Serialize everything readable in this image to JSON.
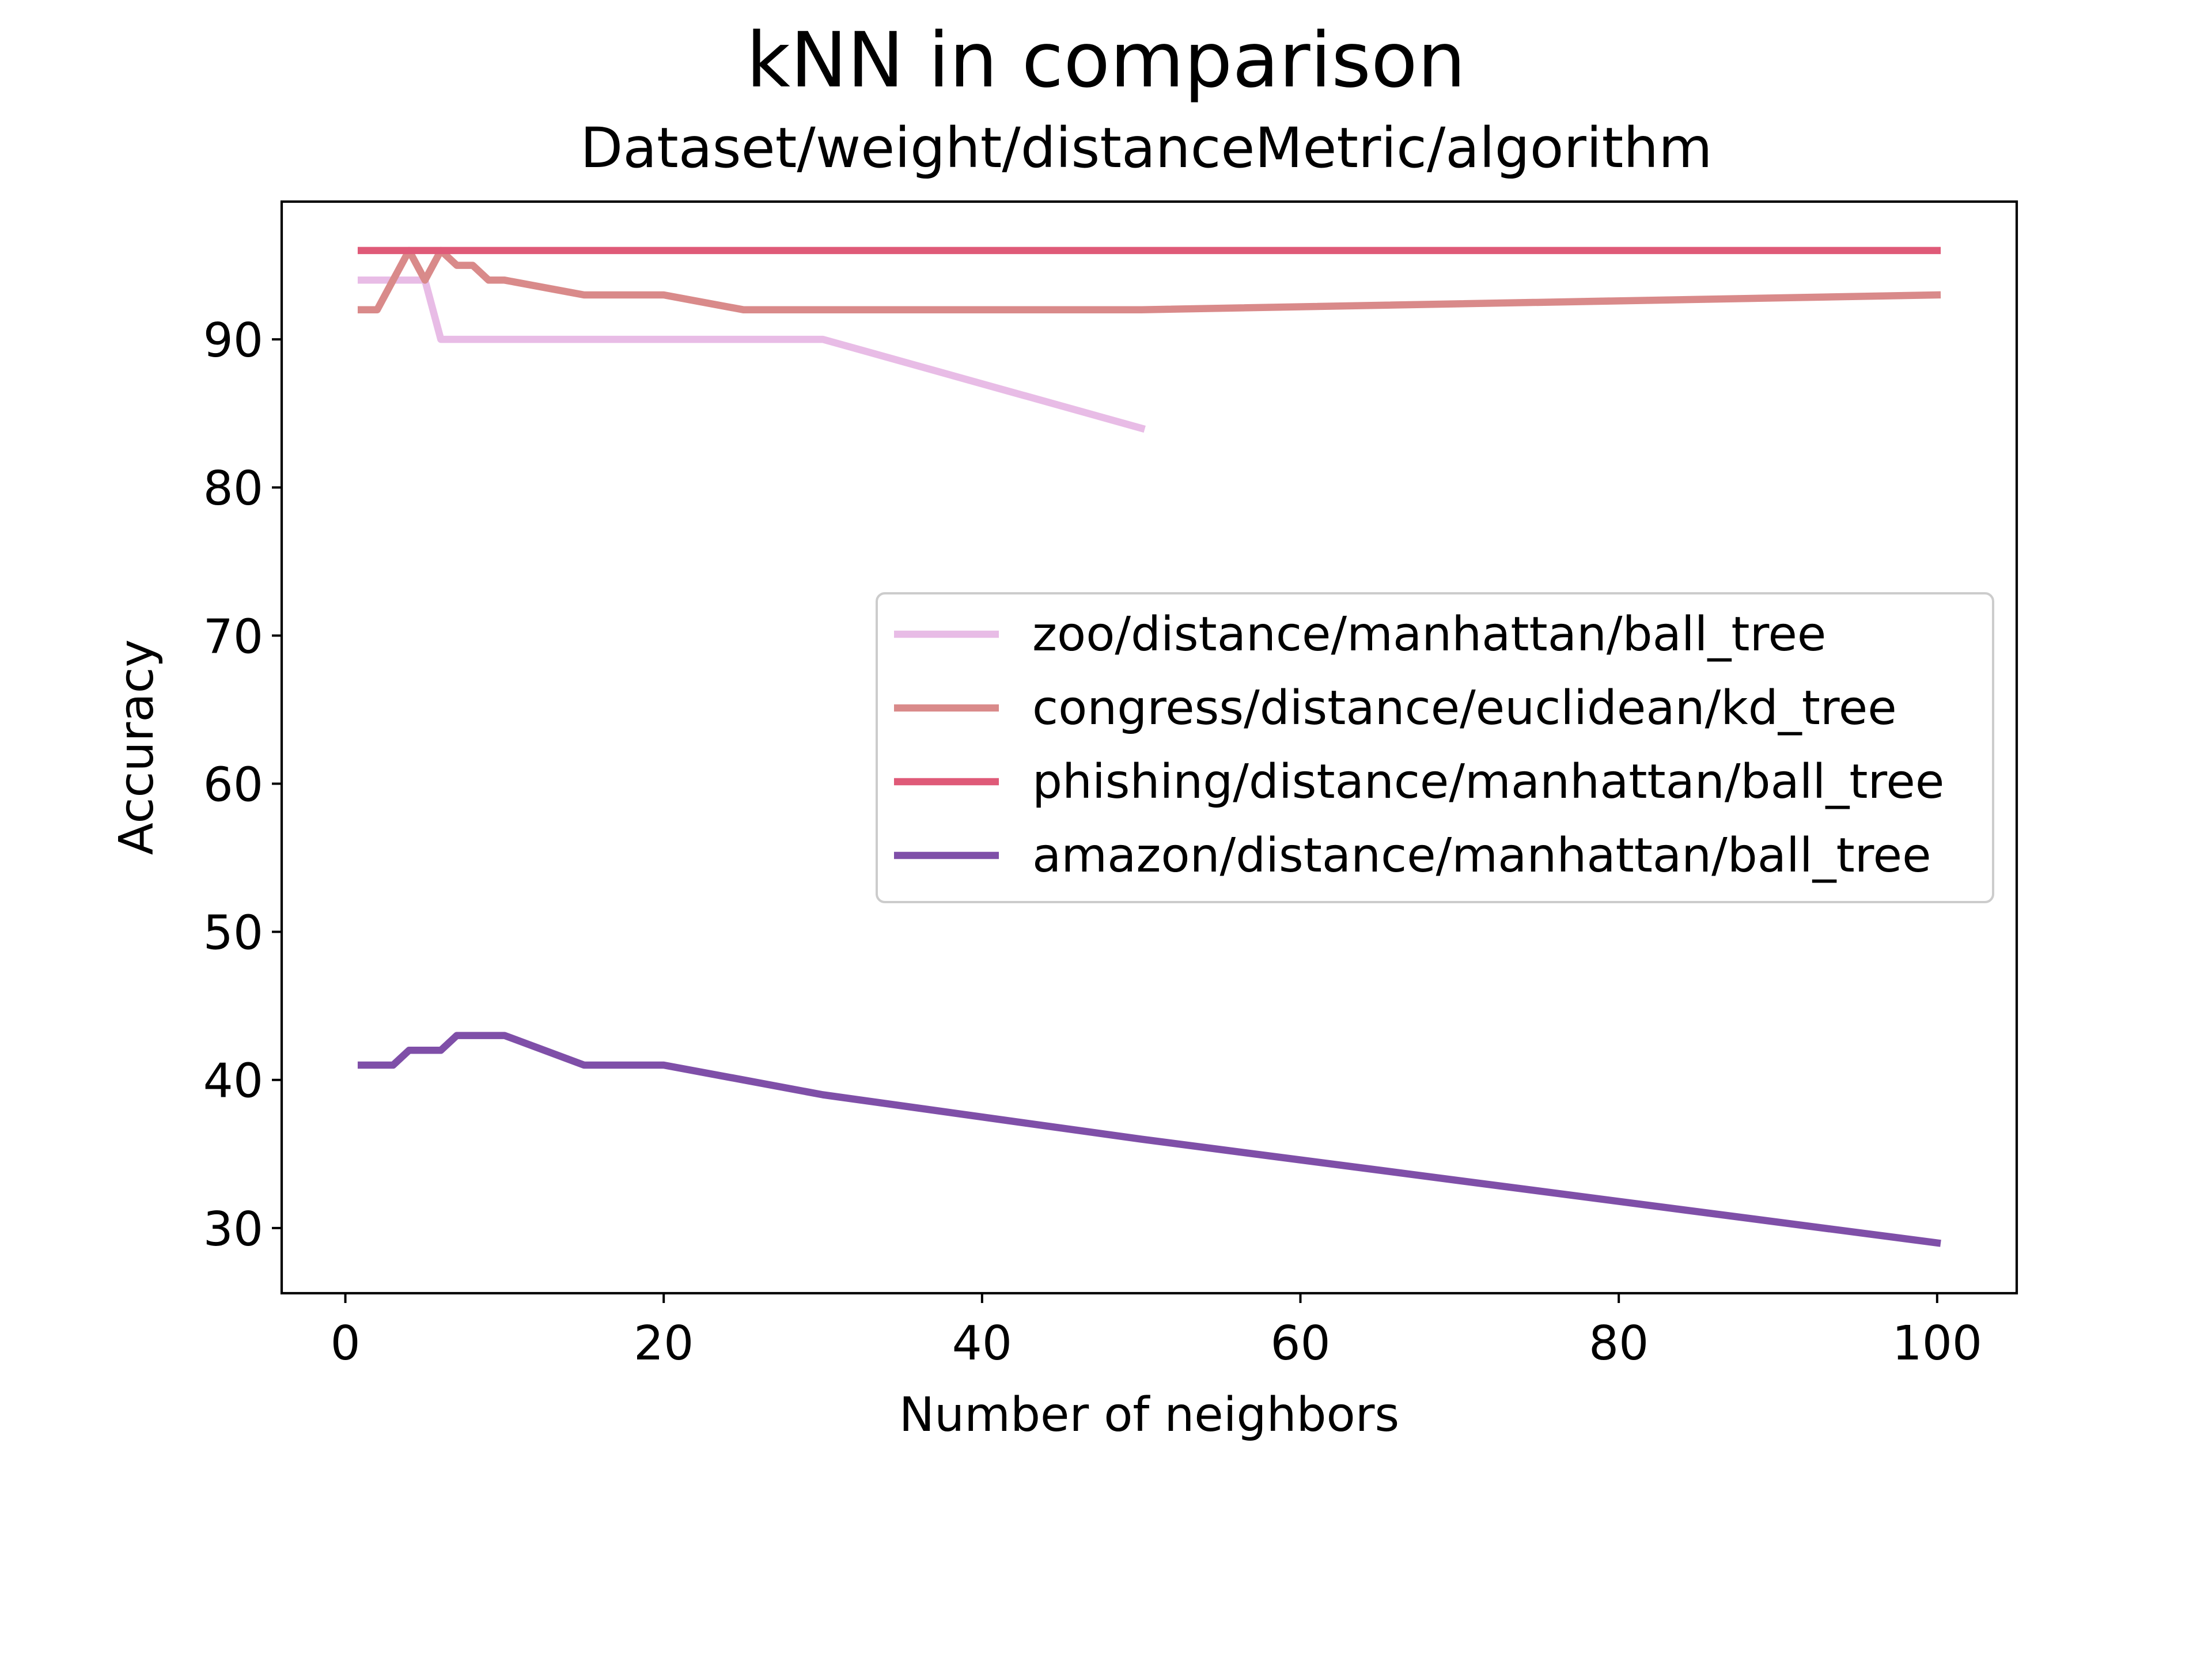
{
  "chart_data": {
    "type": "line",
    "title": "kNN in comparison",
    "subtitle": "Dataset/weight/distanceMetric/algorithm",
    "xlabel": "Number of neighbors",
    "ylabel": "Accuracy",
    "xlim": [
      -4,
      105
    ],
    "ylim": [
      25.6,
      99.3
    ],
    "xticks": [
      0,
      20,
      40,
      60,
      80,
      100
    ],
    "yticks": [
      30,
      40,
      50,
      60,
      70,
      80,
      90
    ],
    "grid": false,
    "legend_position": "center-right",
    "series": [
      {
        "name": "zoo/distance/manhattan/ball_tree",
        "color": "#e8bce6",
        "x": [
          1,
          2,
          3,
          4,
          5,
          6,
          7,
          8,
          9,
          10,
          15,
          20,
          25,
          30,
          50
        ],
        "y": [
          94,
          94,
          94,
          94,
          94,
          90,
          90,
          90,
          90,
          90,
          90,
          90,
          90,
          90,
          84
        ]
      },
      {
        "name": "congress/distance/euclidean/kd_tree",
        "color": "#d98a8a",
        "x": [
          1,
          2,
          3,
          4,
          5,
          6,
          7,
          8,
          9,
          10,
          15,
          20,
          25,
          30,
          50,
          100
        ],
        "y": [
          92,
          92,
          94,
          96,
          94,
          96,
          95,
          95,
          94,
          94,
          93,
          93,
          92,
          92,
          92,
          93
        ]
      },
      {
        "name": "phishing/distance/manhattan/ball_tree",
        "color": "#df5a78",
        "x": [
          1,
          2,
          3,
          4,
          5,
          6,
          7,
          8,
          9,
          10,
          15,
          20,
          25,
          30,
          50,
          100
        ],
        "y": [
          96,
          96,
          96,
          96,
          96,
          96,
          96,
          96,
          96,
          96,
          96,
          96,
          96,
          96,
          96,
          96
        ]
      },
      {
        "name": "amazon/distance/manhattan/ball_tree",
        "color": "#7f4fa8",
        "x": [
          1,
          2,
          3,
          4,
          5,
          6,
          7,
          8,
          9,
          10,
          15,
          20,
          25,
          30,
          50,
          100
        ],
        "y": [
          41,
          41,
          41,
          42,
          42,
          42,
          43,
          43,
          43,
          43,
          41,
          41,
          40,
          39,
          36,
          29
        ]
      }
    ]
  }
}
